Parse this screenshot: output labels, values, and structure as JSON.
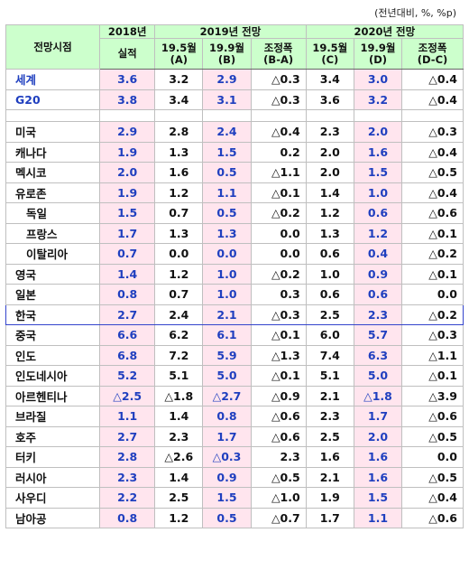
{
  "unit_note": "(전년대비, %, %p)",
  "header": {
    "col_label": "전망시점",
    "y2018": "2018년",
    "y2019": "2019년 전망",
    "y2020": "2020년 전망",
    "actual": "실적",
    "may19_a": "19.5월",
    "may19_a_sub": "(A)",
    "sep19_b": "19.9월",
    "sep19_b_sub": "(B)",
    "adj_ba": "조정폭",
    "adj_ba_sub": "(B-A)",
    "may19_c": "19.5월",
    "may19_c_sub": "(C)",
    "sep19_d": "19.9월",
    "sep19_d_sub": "(D)",
    "adj_dc": "조정폭",
    "adj_dc_sub": "(D-C)"
  },
  "rows": [
    {
      "name": "세계",
      "v": [
        "3.6",
        "3.2",
        "2.9",
        "△0.3",
        "3.4",
        "3.0",
        "△0.4"
      ]
    },
    {
      "name": "G20",
      "v": [
        "3.8",
        "3.4",
        "3.1",
        "△0.3",
        "3.6",
        "3.2",
        "△0.4"
      ]
    },
    {
      "name": "미국",
      "v": [
        "2.9",
        "2.8",
        "2.4",
        "△0.4",
        "2.3",
        "2.0",
        "△0.3"
      ]
    },
    {
      "name": "캐나다",
      "v": [
        "1.9",
        "1.3",
        "1.5",
        "0.2",
        "2.0",
        "1.6",
        "△0.4"
      ]
    },
    {
      "name": "멕시코",
      "v": [
        "2.0",
        "1.6",
        "0.5",
        "△1.1",
        "2.0",
        "1.5",
        "△0.5"
      ]
    },
    {
      "name": "유로존",
      "v": [
        "1.9",
        "1.2",
        "1.1",
        "△0.1",
        "1.4",
        "1.0",
        "△0.4"
      ]
    },
    {
      "name": "독일",
      "v": [
        "1.5",
        "0.7",
        "0.5",
        "△0.2",
        "1.2",
        "0.6",
        "△0.6"
      ]
    },
    {
      "name": "프랑스",
      "v": [
        "1.7",
        "1.3",
        "1.3",
        "0.0",
        "1.3",
        "1.2",
        "△0.1"
      ]
    },
    {
      "name": "이탈리아",
      "v": [
        "0.7",
        "0.0",
        "0.0",
        "0.0",
        "0.6",
        "0.4",
        "△0.2"
      ]
    },
    {
      "name": "영국",
      "v": [
        "1.4",
        "1.2",
        "1.0",
        "△0.2",
        "1.0",
        "0.9",
        "△0.1"
      ]
    },
    {
      "name": "일본",
      "v": [
        "0.8",
        "0.7",
        "1.0",
        "0.3",
        "0.6",
        "0.6",
        "0.0"
      ]
    },
    {
      "name": "한국",
      "v": [
        "2.7",
        "2.4",
        "2.1",
        "△0.3",
        "2.5",
        "2.3",
        "△0.2"
      ]
    },
    {
      "name": "중국",
      "v": [
        "6.6",
        "6.2",
        "6.1",
        "△0.1",
        "6.0",
        "5.7",
        "△0.3"
      ]
    },
    {
      "name": "인도",
      "v": [
        "6.8",
        "7.2",
        "5.9",
        "△1.3",
        "7.4",
        "6.3",
        "△1.1"
      ]
    },
    {
      "name": "인도네시아",
      "v": [
        "5.2",
        "5.1",
        "5.0",
        "△0.1",
        "5.1",
        "5.0",
        "△0.1"
      ]
    },
    {
      "name": "아르헨티나",
      "v": [
        "△2.5",
        "△1.8",
        "△2.7",
        "△0.9",
        "2.1",
        "△1.8",
        "△3.9"
      ]
    },
    {
      "name": "브라질",
      "v": [
        "1.1",
        "1.4",
        "0.8",
        "△0.6",
        "2.3",
        "1.7",
        "△0.6"
      ]
    },
    {
      "name": "호주",
      "v": [
        "2.7",
        "2.3",
        "1.7",
        "△0.6",
        "2.5",
        "2.0",
        "△0.5"
      ]
    },
    {
      "name": "터키",
      "v": [
        "2.8",
        "△2.6",
        "△0.3",
        "2.3",
        "1.6",
        "1.6",
        "0.0"
      ]
    },
    {
      "name": "러시아",
      "v": [
        "2.3",
        "1.4",
        "0.9",
        "△0.5",
        "2.1",
        "1.6",
        "△0.5"
      ]
    },
    {
      "name": "사우디",
      "v": [
        "2.2",
        "2.5",
        "1.5",
        "△1.0",
        "1.9",
        "1.5",
        "△0.4"
      ]
    },
    {
      "name": "남아공",
      "v": [
        "0.8",
        "1.2",
        "0.5",
        "△0.7",
        "1.7",
        "1.1",
        "△0.6"
      ]
    }
  ]
}
